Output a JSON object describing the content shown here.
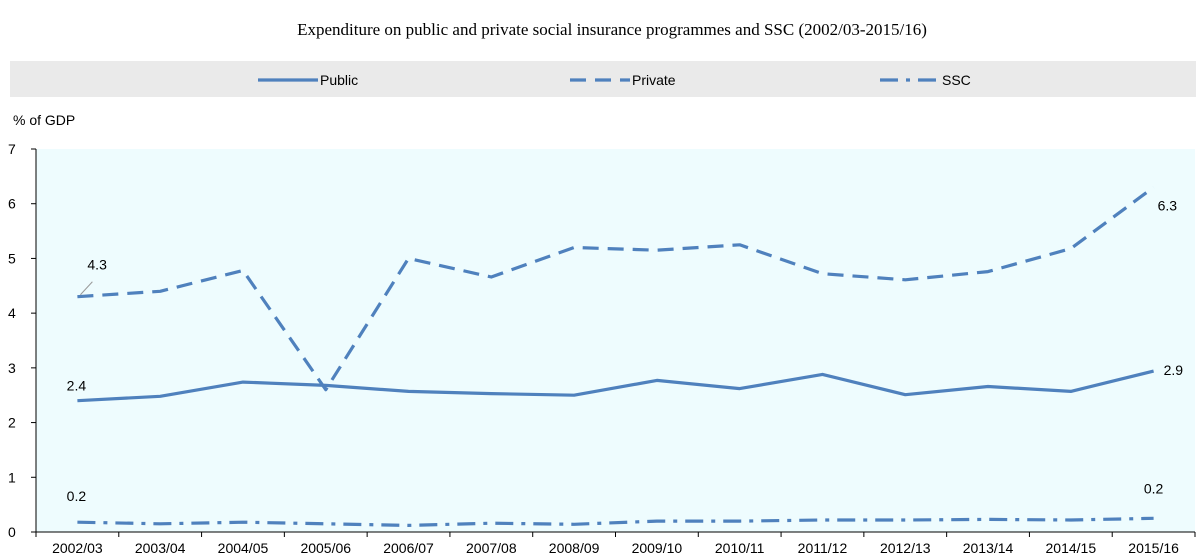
{
  "chart_data": {
    "type": "line",
    "title": "Expenditure on public and private social insurance programmes and SSC (2002/03-2015/16)",
    "ylabel": "% of GDP",
    "xlabel": "",
    "ylim": [
      0,
      7
    ],
    "yticks": [
      "0",
      "1",
      "2",
      "3",
      "4",
      "5",
      "6",
      "7"
    ],
    "grid": false,
    "legend_position": "top",
    "categories": [
      "2002/03",
      "2003/04",
      "2004/05",
      "2005/06",
      "2006/07",
      "2007/08",
      "2008/09",
      "2009/10",
      "2010/11",
      "2011/12",
      "2012/13",
      "2013/14",
      "2014/15",
      "2015/16"
    ],
    "series": [
      {
        "name": "Public",
        "dash": "solid",
        "values": [
          2.4,
          2.48,
          2.74,
          2.68,
          2.57,
          2.53,
          2.5,
          2.77,
          2.62,
          2.88,
          2.51,
          2.66,
          2.57,
          2.94
        ]
      },
      {
        "name": "Private",
        "dash": "dashed",
        "values": [
          4.3,
          4.4,
          4.78,
          2.6,
          5.0,
          4.66,
          5.2,
          5.15,
          5.25,
          4.72,
          4.61,
          4.76,
          5.18,
          6.3
        ]
      },
      {
        "name": "SSC",
        "dash": "dashdot",
        "values": [
          0.18,
          0.15,
          0.18,
          0.15,
          0.12,
          0.16,
          0.14,
          0.2,
          0.2,
          0.22,
          0.22,
          0.23,
          0.22,
          0.25
        ]
      }
    ],
    "annotations": [
      {
        "series": "Private",
        "index": 0,
        "text": "4.3"
      },
      {
        "series": "Private",
        "index": 13,
        "text": "6.3"
      },
      {
        "series": "Public",
        "index": 0,
        "text": "2.4"
      },
      {
        "series": "Public",
        "index": 13,
        "text": "2.9"
      },
      {
        "series": "SSC",
        "index": 0,
        "text": "0.2"
      },
      {
        "series": "SSC",
        "index": 13,
        "text": "0.2"
      }
    ],
    "colors": {
      "line": "#4f81bd",
      "plot_background": "#eefcfe",
      "legend_background": "#eaeaea",
      "axis": "#000000"
    }
  }
}
